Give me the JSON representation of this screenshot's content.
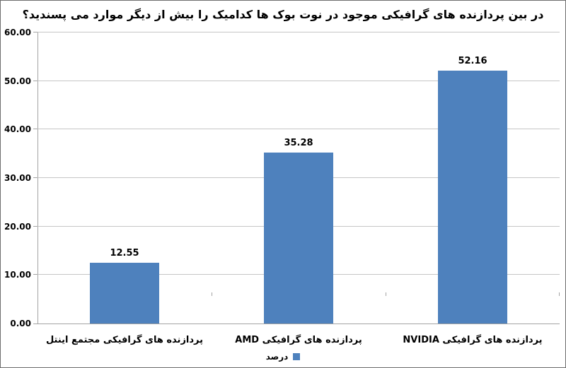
{
  "chart_data": {
    "type": "bar",
    "title": "در بین پردازنده های گرافیکی موجود در نوت بوک ها کدامیک را بیش از دیگر موارد می پسندید؟",
    "categories": [
      "پردازنده های گرافیکی مجتمع اینتل",
      "پردازنده های گرافیکی AMD",
      "پردازنده های گرافیکی NVIDIA"
    ],
    "values": [
      12.55,
      35.28,
      52.16
    ],
    "value_labels": [
      "12.55",
      "35.28",
      "52.16"
    ],
    "series_name": "درصد",
    "xlabel": "",
    "ylabel": "",
    "ylim": [
      0,
      60
    ],
    "ytick_values": [
      0,
      10,
      20,
      30,
      40,
      50,
      60
    ],
    "ytick_labels": [
      "0.00",
      "10.00",
      "20.00",
      "30.00",
      "40.00",
      "50.00",
      "60.00"
    ],
    "grid": true,
    "legend_position": "bottom",
    "bar_color": "#4E81BD",
    "gridline_color": "#C6C6C6",
    "axis_color": "#A3A3A3",
    "text_color": "#000000"
  }
}
